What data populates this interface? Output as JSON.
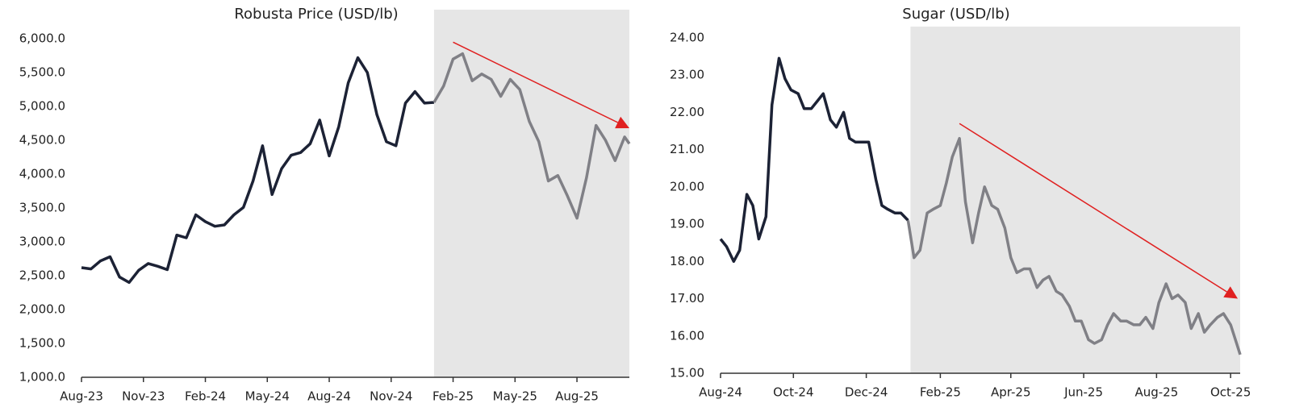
{
  "chart_data": [
    {
      "type": "line",
      "title": "Robusta Price (USD/lb)",
      "x": [
        0,
        2,
        4,
        6,
        8,
        10,
        12,
        14,
        16,
        18,
        20,
        22,
        24,
        26,
        28,
        30,
        32,
        34,
        36,
        38,
        40,
        42,
        44,
        46,
        48,
        50,
        52,
        54,
        56,
        58,
        60,
        62,
        64,
        66,
        68,
        70,
        72,
        74,
        76,
        78,
        80,
        82,
        84,
        86,
        88,
        90,
        92,
        94,
        96,
        98,
        100,
        102,
        104,
        106,
        108,
        110,
        112,
        114,
        115
      ],
      "series": [
        {
          "color": "#1c2235",
          "values": [
            2620,
            2600,
            2720,
            2780,
            2480,
            2400,
            2580,
            2680,
            2640,
            2590,
            3100,
            3060,
            3400,
            3300,
            3230,
            3250,
            3400,
            3510,
            3900,
            4420,
            3700,
            4080,
            4280,
            4320,
            4450,
            4800,
            4270,
            4700,
            5350,
            5720,
            5500,
            4880,
            4480,
            4420,
            5050,
            5220,
            5050,
            5060,
            null,
            null,
            null,
            null,
            null,
            null,
            null,
            null,
            null,
            null,
            null,
            null,
            null,
            null,
            null,
            null,
            null,
            null,
            null,
            null,
            null
          ]
        },
        {
          "color": "#808086",
          "values": [
            null,
            null,
            null,
            null,
            null,
            null,
            null,
            null,
            null,
            null,
            null,
            null,
            null,
            null,
            null,
            null,
            null,
            null,
            null,
            null,
            null,
            null,
            null,
            null,
            null,
            null,
            null,
            null,
            null,
            null,
            null,
            null,
            null,
            null,
            null,
            null,
            null,
            5060,
            5300,
            5700,
            5780,
            5380,
            5480,
            5400,
            5150,
            5400,
            5250,
            4780,
            4480,
            3900,
            3980,
            3680,
            3350,
            3950,
            4720,
            4500,
            4200,
            4550,
            4450
          ]
        }
      ],
      "xlim": [
        0,
        115
      ],
      "xticks": [
        {
          "value": 0,
          "label": "Aug-23"
        },
        {
          "value": 13,
          "label": "Nov-23"
        },
        {
          "value": 26,
          "label": "Feb-24"
        },
        {
          "value": 39,
          "label": "May-24"
        },
        {
          "value": 52,
          "label": "Aug-24"
        },
        {
          "value": 65,
          "label": "Nov-24"
        },
        {
          "value": 78,
          "label": "Feb-25"
        },
        {
          "value": 91,
          "label": "May-25"
        },
        {
          "value": 104,
          "label": "Aug-25"
        }
      ],
      "ylim": [
        1000,
        6430
      ],
      "yticks": [
        {
          "value": 1000,
          "label": "1,000.0"
        },
        {
          "value": 1500,
          "label": "1,500.0"
        },
        {
          "value": 2000,
          "label": "2,000.0"
        },
        {
          "value": 2500,
          "label": "2,500.0"
        },
        {
          "value": 3000,
          "label": "3,000.0"
        },
        {
          "value": 3500,
          "label": "3,500.0"
        },
        {
          "value": 4000,
          "label": "4,000.0"
        },
        {
          "value": 4500,
          "label": "4,500.0"
        },
        {
          "value": 5000,
          "label": "5,000.0"
        },
        {
          "value": 5500,
          "label": "5,500.0"
        },
        {
          "value": 6000,
          "label": "6,000.0"
        }
      ],
      "highlight_x": [
        74,
        115
      ],
      "highlight_color": "#e6e6e6",
      "trend_arrow": {
        "x": [
          78,
          115
        ],
        "y": [
          5950,
          4680
        ],
        "color": "#e02020"
      },
      "grid": false
    },
    {
      "type": "line",
      "title": "Sugar (USD/lb)",
      "x": [
        0,
        5,
        11,
        16,
        22,
        27,
        32,
        38,
        43,
        49,
        54,
        59,
        65,
        70,
        76,
        81,
        86,
        92,
        97,
        103,
        108,
        113,
        119,
        124,
        130,
        135,
        140,
        146,
        151,
        157,
        162,
        167,
        173,
        178,
        184,
        189,
        194,
        200,
        205,
        211,
        216,
        221,
        227,
        232,
        238,
        243,
        248,
        254,
        259,
        265,
        270,
        275,
        281,
        286,
        292,
        297,
        302,
        308,
        313,
        319,
        324,
        329,
        335,
        340,
        346,
        351,
        356,
        362,
        367,
        373,
        378,
        383,
        389,
        394,
        400,
        405,
        410,
        416,
        421,
        427,
        432,
        435
      ],
      "series": [
        {
          "color": "#1c2235",
          "values": [
            18.6,
            18.4,
            18.0,
            18.3,
            19.8,
            19.5,
            18.6,
            19.2,
            22.2,
            23.45,
            22.9,
            22.6,
            22.5,
            22.1,
            22.1,
            22.3,
            22.5,
            21.8,
            21.6,
            22.0,
            21.3,
            21.2,
            21.2,
            21.2,
            20.2,
            19.5,
            19.4,
            19.3,
            19.3,
            19.1,
            null,
            null,
            null,
            null,
            null,
            null,
            null,
            null,
            null,
            null,
            null,
            null,
            null,
            null,
            null,
            null,
            null,
            null,
            null,
            null,
            null,
            null,
            null,
            null,
            null,
            null,
            null,
            null,
            null,
            null,
            null,
            null,
            null,
            null,
            null,
            null,
            null,
            null,
            null,
            null,
            null,
            null,
            null,
            null,
            null,
            null,
            null,
            null,
            null,
            null,
            null,
            null
          ]
        },
        {
          "color": "#808086",
          "values": [
            null,
            null,
            null,
            null,
            null,
            null,
            null,
            null,
            null,
            null,
            null,
            null,
            null,
            null,
            null,
            null,
            null,
            null,
            null,
            null,
            null,
            null,
            null,
            null,
            null,
            null,
            null,
            null,
            null,
            19.1,
            18.1,
            18.3,
            19.3,
            19.4,
            19.5,
            20.1,
            20.8,
            21.3,
            19.6,
            18.5,
            19.3,
            20.0,
            19.5,
            19.4,
            18.9,
            18.1,
            17.7,
            17.8,
            17.8,
            17.3,
            17.5,
            17.6,
            17.2,
            17.1,
            16.8,
            16.4,
            16.4,
            15.9,
            15.8,
            15.9,
            16.3,
            16.6,
            16.4,
            16.4,
            16.3,
            16.3,
            16.5,
            16.2,
            16.9,
            17.4,
            17.0,
            17.1,
            16.9,
            16.2,
            16.6,
            16.1,
            16.3,
            16.5,
            16.6,
            16.3,
            15.8,
            15.5
          ]
        }
      ],
      "xlim": [
        0,
        435
      ],
      "xticks": [
        {
          "value": 0,
          "label": "Aug-24"
        },
        {
          "value": 61,
          "label": "Oct-24"
        },
        {
          "value": 122,
          "label": "Dec-24"
        },
        {
          "value": 184,
          "label": "Feb-25"
        },
        {
          "value": 243,
          "label": "Apr-25"
        },
        {
          "value": 304,
          "label": "Jun-25"
        },
        {
          "value": 365,
          "label": "Aug-25"
        },
        {
          "value": 427,
          "label": "Oct-25"
        }
      ],
      "ylim": [
        15,
        24.3
      ],
      "yticks": [
        {
          "value": 15,
          "label": "15.00"
        },
        {
          "value": 16,
          "label": "16.00"
        },
        {
          "value": 17,
          "label": "17.00"
        },
        {
          "value": 18,
          "label": "18.00"
        },
        {
          "value": 19,
          "label": "19.00"
        },
        {
          "value": 20,
          "label": "20.00"
        },
        {
          "value": 21,
          "label": "21.00"
        },
        {
          "value": 22,
          "label": "22.00"
        },
        {
          "value": 23,
          "label": "23.00"
        },
        {
          "value": 24,
          "label": "24.00"
        }
      ],
      "highlight_x": [
        159,
        435
      ],
      "highlight_color": "#e6e6e6",
      "trend_arrow": {
        "x": [
          200,
          433
        ],
        "y": [
          21.7,
          17.0
        ],
        "color": "#e02020"
      },
      "grid": false
    }
  ]
}
